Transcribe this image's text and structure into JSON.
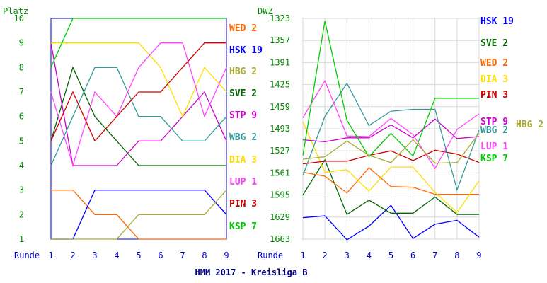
{
  "footer": "HMM 2017 - Kreisliga B",
  "chart_data": [
    {
      "type": "line",
      "ylabel": "Platz",
      "xlabel": "Runde",
      "x": [
        1,
        2,
        3,
        4,
        5,
        6,
        7,
        8,
        9
      ],
      "yticks": [
        1,
        2,
        3,
        4,
        5,
        6,
        7,
        8,
        9,
        10
      ],
      "ylim": [
        10,
        1
      ],
      "grid": false,
      "series": [
        {
          "name": "WED 2",
          "color": "#ff6600",
          "values": [
            3,
            3,
            2,
            2,
            1,
            1,
            1,
            1,
            1
          ]
        },
        {
          "name": "HSK 19",
          "color": "#0000ff",
          "values": [
            1,
            1,
            3,
            3,
            3,
            3,
            3,
            3,
            2
          ]
        },
        {
          "name": "HBG 2",
          "color": "#aaaa33",
          "values": [
            1,
            1,
            1,
            1,
            2,
            2,
            2,
            2,
            3
          ]
        },
        {
          "name": "SVE 2",
          "color": "#006600",
          "values": [
            5,
            8,
            6,
            5,
            4,
            4,
            4,
            4,
            4
          ]
        },
        {
          "name": "STP 9",
          "color": "#cc00cc",
          "values": [
            9,
            4,
            4,
            4,
            5,
            5,
            6,
            7,
            5
          ]
        },
        {
          "name": "WBG 2",
          "color": "#339999",
          "values": [
            4,
            6,
            8,
            8,
            6,
            6,
            5,
            5,
            6
          ]
        },
        {
          "name": "DIA 3",
          "color": "#ffdd00",
          "values": [
            9,
            9,
            9,
            9,
            9,
            8,
            6,
            8,
            7
          ]
        },
        {
          "name": "LUP 1",
          "color": "#ff44ff",
          "values": [
            7,
            4,
            7,
            6,
            8,
            9,
            9,
            6,
            8
          ]
        },
        {
          "name": "PIN 3",
          "color": "#cc0000",
          "values": [
            5,
            7,
            5,
            6,
            7,
            7,
            8,
            9,
            9
          ]
        },
        {
          "name": "KSP 7",
          "color": "#00cc00",
          "values": [
            8,
            10,
            10,
            10,
            10,
            10,
            10,
            10,
            10
          ]
        }
      ]
    },
    {
      "type": "line",
      "ylabel": "DWZ",
      "xlabel": "Runde",
      "x": [
        1,
        2,
        3,
        4,
        5,
        6,
        7,
        8,
        9
      ],
      "yticks": [
        1663,
        1629,
        1595,
        1561,
        1527,
        1493,
        1459,
        1425,
        1391,
        1357,
        1323
      ],
      "ylim": [
        1323,
        1663
      ],
      "grid": true,
      "series": [
        {
          "name": "HSK 19",
          "color": "#0000ff",
          "values": [
            1630,
            1627,
            1664,
            1643,
            1611,
            1662,
            1640,
            1634,
            1660
          ]
        },
        {
          "name": "SVE 2",
          "color": "#006600",
          "values": [
            1595,
            1541,
            1625,
            1603,
            1623,
            1623,
            1598,
            1625,
            1625
          ]
        },
        {
          "name": "WED 2",
          "color": "#ff6600",
          "values": [
            1560,
            1566,
            1592,
            1553,
            1582,
            1583,
            1594,
            1594,
            1594
          ]
        },
        {
          "name": "DIA 3",
          "color": "#ffdd00",
          "values": [
            1482,
            1560,
            1556,
            1589,
            1552,
            1552,
            1591,
            1622,
            1573
          ]
        },
        {
          "name": "PIN 3",
          "color": "#cc0000",
          "values": [
            1547,
            1543,
            1543,
            1534,
            1527,
            1542,
            1526,
            1532,
            1545
          ]
        },
        {
          "name": "STP 9",
          "color": "#cc00cc",
          "values": [
            1510,
            1513,
            1507,
            1507,
            1487,
            1507,
            1478,
            1508,
            1505
          ]
        },
        {
          "name": "WBG 2",
          "color": "#339999",
          "values": [
            1565,
            1474,
            1423,
            1488,
            1466,
            1463,
            1463,
            1587,
            1495
          ]
        },
        {
          "name": "LUP 1",
          "color": "#ff44ff",
          "values": [
            1476,
            1419,
            1504,
            1505,
            1477,
            1502,
            1554,
            1494,
            1470
          ]
        },
        {
          "name": "KSP 7",
          "color": "#00cc00",
          "values": [
            1534,
            1327,
            1480,
            1536,
            1500,
            1535,
            1446,
            1446,
            1446
          ]
        },
        {
          "name": "HBG 2",
          "color": "#aaaa33",
          "values": [
            1540,
            1536,
            1512,
            1534,
            1545,
            1510,
            1546,
            1545,
            1500
          ]
        }
      ]
    }
  ]
}
